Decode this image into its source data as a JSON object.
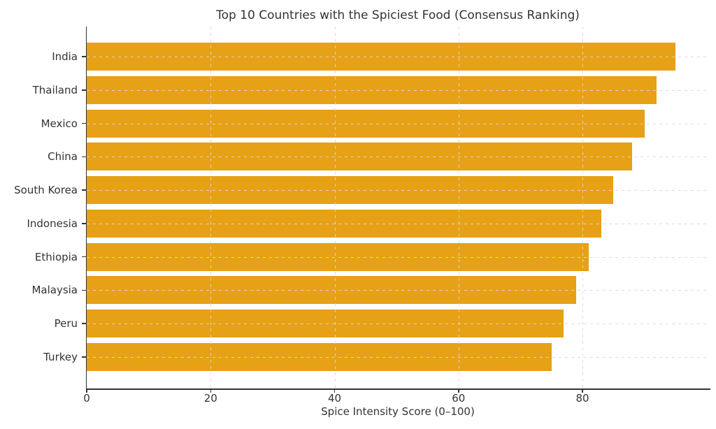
{
  "chart_data": {
    "type": "bar",
    "orientation": "horizontal",
    "title": "Top 10 Countries with the Spiciest Food (Consensus Ranking)",
    "categories": [
      "India",
      "Thailand",
      "Mexico",
      "China",
      "South Korea",
      "Indonesia",
      "Ethiopia",
      "Malaysia",
      "Peru",
      "Turkey"
    ],
    "values": [
      95,
      92,
      90,
      88,
      85,
      83,
      81,
      79,
      77,
      75
    ],
    "xlabel": "Spice Intensity Score (0–100)",
    "ylabel": "",
    "xlim": [
      0,
      100
    ],
    "xticks": [
      0,
      20,
      40,
      60,
      80
    ],
    "grid": true,
    "grid_style": "dashed",
    "legend": "none",
    "bar_color": "#E6A117",
    "text_color": "#333333",
    "gridline_color": "#d8d8d8"
  }
}
